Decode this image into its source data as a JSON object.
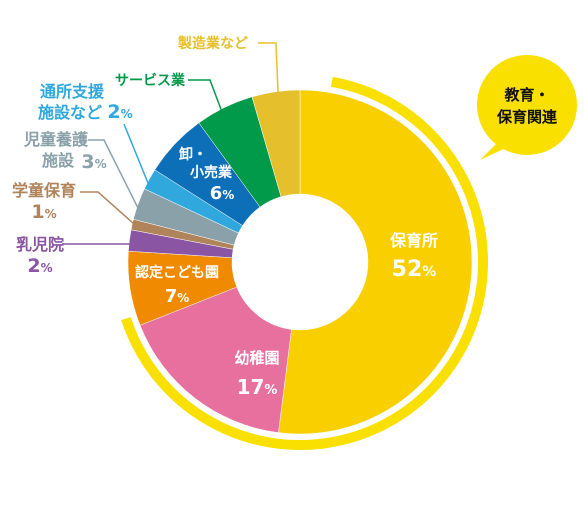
{
  "chart_data": {
    "type": "pie",
    "title": "",
    "categories": [
      "保育所",
      "幼稚園",
      "認定こども園",
      "乳児院",
      "学童保育",
      "児童養護施設",
      "通所支援施設など",
      "卸・小売業",
      "サービス業",
      "製造業など"
    ],
    "values": [
      52,
      17,
      7,
      2,
      1,
      3,
      2,
      6,
      5.5,
      4.5
    ],
    "labels": [
      {
        "name": "保育所",
        "value": "52",
        "unit": "%"
      },
      {
        "name": "幼稚園",
        "value": "17",
        "unit": "%"
      },
      {
        "name": "認定こども園",
        "value": "7",
        "unit": "%"
      },
      {
        "name": "乳児院",
        "value": "2",
        "unit": "%"
      },
      {
        "name": "学童保育",
        "value": "1",
        "unit": "%"
      },
      {
        "name_lines": [
          "児童養護",
          "施設"
        ],
        "value": "3",
        "unit": "%"
      },
      {
        "name_lines": [
          "通所支援",
          "施設など"
        ],
        "value": "2",
        "unit": "%"
      },
      {
        "name_lines": [
          "卸・",
          "小売業"
        ],
        "value": "6",
        "unit": "%"
      },
      {
        "name": "サービス業"
      },
      {
        "name": "製造業など"
      }
    ],
    "colors": [
      "#f9cf00",
      "#e7709f",
      "#f08a00",
      "#8a55a3",
      "#b0845a",
      "#8aa1a9",
      "#30a8dd",
      "#0e6fb9",
      "#009a4a",
      "#e6c02c"
    ],
    "outer_arc_color": "#f9e000",
    "bubble": {
      "line1": "教育・",
      "line2": "保育関連",
      "color": "#f9e000"
    }
  }
}
